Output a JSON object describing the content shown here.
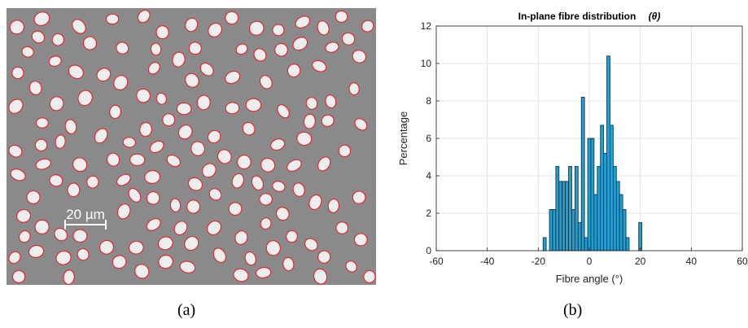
{
  "panels": {
    "a": "(a)",
    "b": "(b)"
  },
  "micrograph": {
    "scale_bar_label": "20 µm",
    "background_color": "#8a8a8a",
    "fibre_color": "#eeeeee",
    "outline_color": "#e8202a"
  },
  "chart_data": {
    "type": "bar",
    "title": "In-plane fibre distribution",
    "title_symbol": "(θ)",
    "xlabel": "Fibre angle (°)",
    "ylabel": "Percentage",
    "xlim": [
      -60,
      60
    ],
    "ylim": [
      0,
      12
    ],
    "xticks": [
      -60,
      -40,
      -20,
      0,
      20,
      40,
      60
    ],
    "yticks": [
      0,
      2,
      4,
      6,
      8,
      10,
      12
    ],
    "grid": true,
    "bin_width": 1.25,
    "bar_color": "#1f9fd2",
    "bins": [
      {
        "x": -17.5,
        "value": 0.7
      },
      {
        "x": -15.0,
        "value": 2.2
      },
      {
        "x": -13.75,
        "value": 2.2
      },
      {
        "x": -12.5,
        "value": 4.5
      },
      {
        "x": -11.25,
        "value": 3.7
      },
      {
        "x": -10.0,
        "value": 3.7
      },
      {
        "x": -8.75,
        "value": 3.7
      },
      {
        "x": -7.5,
        "value": 4.5
      },
      {
        "x": -6.25,
        "value": 2.2
      },
      {
        "x": -5.0,
        "value": 4.5
      },
      {
        "x": -3.75,
        "value": 1.5
      },
      {
        "x": -2.5,
        "value": 8.2
      },
      {
        "x": -1.25,
        "value": 0.7
      },
      {
        "x": 0.0,
        "value": 6.0
      },
      {
        "x": 1.25,
        "value": 6.0
      },
      {
        "x": 2.5,
        "value": 3.0
      },
      {
        "x": 3.75,
        "value": 4.5
      },
      {
        "x": 5.0,
        "value": 6.7
      },
      {
        "x": 6.25,
        "value": 5.2
      },
      {
        "x": 7.5,
        "value": 10.4
      },
      {
        "x": 8.75,
        "value": 6.7
      },
      {
        "x": 10.0,
        "value": 4.5
      },
      {
        "x": 11.25,
        "value": 3.7
      },
      {
        "x": 12.5,
        "value": 3.0
      },
      {
        "x": 13.75,
        "value": 2.2
      },
      {
        "x": 15.0,
        "value": 0.7
      },
      {
        "x": 20.0,
        "value": 1.5
      }
    ]
  }
}
